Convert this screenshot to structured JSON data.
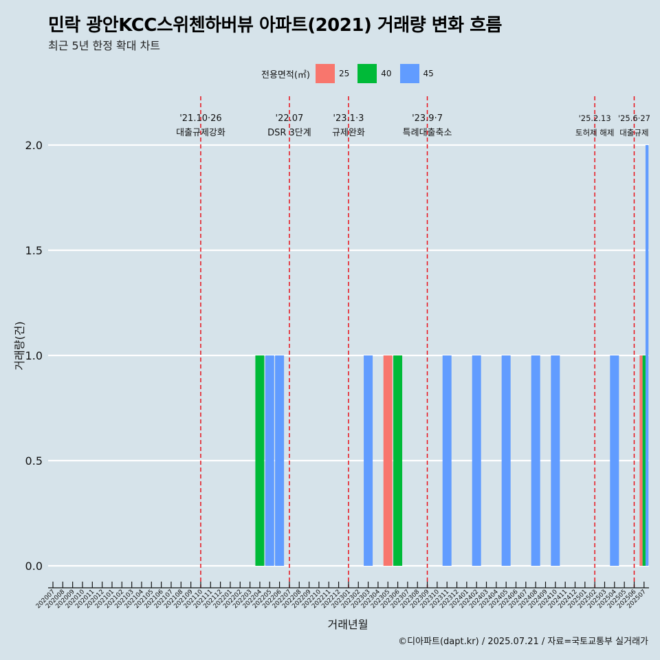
{
  "title": "민락 광안KCC스위첸하버뷰 아파트(2021) 거래량 변화 흐름",
  "subtitle": "최근 5년 한정 확대 차트",
  "caption": "©디아파트(dapt.kr) / 2025.07.21 / 자료=국토교통부 실거래가",
  "legend": {
    "title": "전용면적(㎡)",
    "items": [
      {
        "label": "25",
        "color": "#f8766d"
      },
      {
        "label": "40",
        "color": "#00ba38"
      },
      {
        "label": "45",
        "color": "#619cff"
      }
    ]
  },
  "chart_data": {
    "type": "bar",
    "xlabel": "거래년월",
    "ylabel": "거래량(건)",
    "ylim": [
      0,
      2
    ],
    "yticks": [
      "0.0",
      "0.5",
      "1.0",
      "1.5",
      "2.0"
    ],
    "grid": "horizontal",
    "legend_position": "top",
    "categories": [
      "202007",
      "202008",
      "202009",
      "202010",
      "202011",
      "202012",
      "202101",
      "202102",
      "202103",
      "202104",
      "202105",
      "202106",
      "202107",
      "202108",
      "202109",
      "202110",
      "202111",
      "202112",
      "202201",
      "202202",
      "202203",
      "202204",
      "202205",
      "202206",
      "202207",
      "202208",
      "202209",
      "202210",
      "202211",
      "202212",
      "202301",
      "202302",
      "202303",
      "202304",
      "202305",
      "202306",
      "202307",
      "202308",
      "202309",
      "202310",
      "202311",
      "202312",
      "202401",
      "202402",
      "202403",
      "202404",
      "202405",
      "202406",
      "202407",
      "202408",
      "202409",
      "202410",
      "202411",
      "202412",
      "202501",
      "202502",
      "202503",
      "202504",
      "202505",
      "202506",
      "202507"
    ],
    "bars": [
      {
        "month": "202204",
        "area": "40",
        "value": 1
      },
      {
        "month": "202205",
        "area": "45",
        "value": 1
      },
      {
        "month": "202206",
        "area": "45",
        "value": 1
      },
      {
        "month": "202303",
        "area": "45",
        "value": 1
      },
      {
        "month": "202305",
        "area": "25",
        "value": 1
      },
      {
        "month": "202306",
        "area": "40",
        "value": 1
      },
      {
        "month": "202311",
        "area": "45",
        "value": 1
      },
      {
        "month": "202402",
        "area": "45",
        "value": 1
      },
      {
        "month": "202405",
        "area": "45",
        "value": 1
      },
      {
        "month": "202408",
        "area": "45",
        "value": 1
      },
      {
        "month": "202410",
        "area": "45",
        "value": 1
      },
      {
        "month": "202504",
        "area": "45",
        "value": 1
      },
      {
        "month": "202507",
        "area": "25",
        "value": 1
      },
      {
        "month": "202507",
        "area": "40",
        "value": 1
      },
      {
        "month": "202507",
        "area": "45",
        "value": 2
      }
    ],
    "events": [
      {
        "month": "202110",
        "date": "'21.10·26",
        "label": "대출규제강화"
      },
      {
        "month": "202207",
        "date": "'22.07",
        "label": "DSR 3단계"
      },
      {
        "month": "202301",
        "date": "'23.1·3",
        "label": "규제완화"
      },
      {
        "month": "202309",
        "date": "'23.9·7",
        "label": "특례대출축소"
      },
      {
        "month": "202502",
        "date": "'25.2.13",
        "label": "토허제 해제"
      },
      {
        "month": "202506",
        "date": "'25.6·27",
        "label": "대출규제"
      }
    ]
  }
}
